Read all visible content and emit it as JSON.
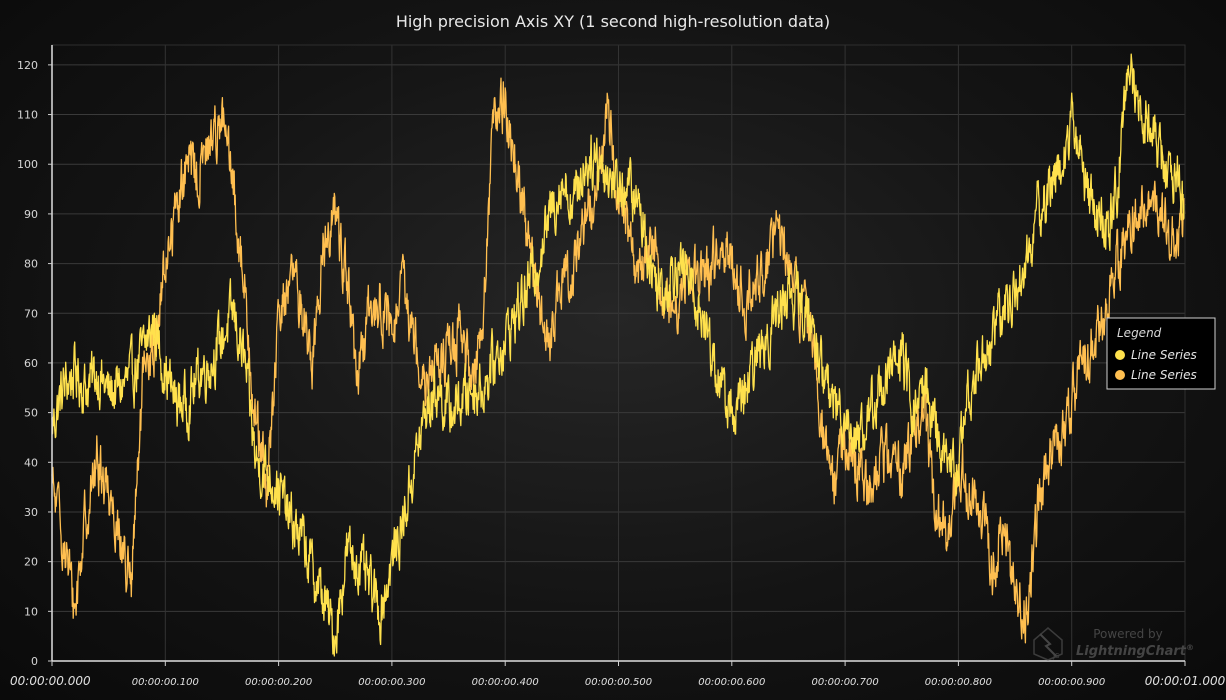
{
  "chart_data": {
    "type": "line",
    "title": "High precision Axis XY (1 second high-resolution data)",
    "xlabel": "",
    "ylabel": "",
    "xlim": [
      "00:00:00.000",
      "00:00:01.000"
    ],
    "xlim_seconds": [
      0,
      1.0
    ],
    "ylim": [
      0,
      124
    ],
    "grid": true,
    "y_ticks": [
      "0",
      "10",
      "20",
      "30",
      "40",
      "50",
      "60",
      "70",
      "80",
      "90",
      "100",
      "110",
      "120"
    ],
    "y_tick_values": [
      0,
      10,
      20,
      30,
      40,
      50,
      60,
      70,
      80,
      90,
      100,
      110,
      120
    ],
    "x_ticks": [
      "00:00:00.000",
      "00:00:00.100",
      "00:00:00.200",
      "00:00:00.300",
      "00:00:00.400",
      "00:00:00.500",
      "00:00:00.600",
      "00:00:00.700",
      "00:00:00.800",
      "00:00:00.900",
      "00:00:01.000"
    ],
    "x_tick_values": [
      0,
      0.1,
      0.2,
      0.3,
      0.4,
      0.5,
      0.6,
      0.7,
      0.8,
      0.9,
      1.0
    ],
    "legend": {
      "title": "Legend",
      "placement": "right"
    },
    "series": [
      {
        "name": "Line Series",
        "color": "#ffe14d",
        "x": [
          0,
          0.01,
          0.02,
          0.03,
          0.04,
          0.05,
          0.06,
          0.07,
          0.08,
          0.09,
          0.1,
          0.11,
          0.12,
          0.13,
          0.14,
          0.15,
          0.16,
          0.17,
          0.18,
          0.19,
          0.2,
          0.21,
          0.22,
          0.23,
          0.24,
          0.25,
          0.26,
          0.27,
          0.28,
          0.29,
          0.3,
          0.31,
          0.32,
          0.33,
          0.34,
          0.35,
          0.36,
          0.37,
          0.38,
          0.39,
          0.4,
          0.41,
          0.42,
          0.43,
          0.44,
          0.45,
          0.46,
          0.47,
          0.48,
          0.49,
          0.5,
          0.51,
          0.52,
          0.53,
          0.54,
          0.55,
          0.56,
          0.57,
          0.58,
          0.59,
          0.6,
          0.61,
          0.62,
          0.63,
          0.64,
          0.65,
          0.66,
          0.67,
          0.68,
          0.69,
          0.7,
          0.71,
          0.72,
          0.73,
          0.74,
          0.75,
          0.76,
          0.77,
          0.78,
          0.79,
          0.8,
          0.81,
          0.82,
          0.83,
          0.84,
          0.85,
          0.86,
          0.87,
          0.88,
          0.89,
          0.9,
          0.91,
          0.92,
          0.93,
          0.94,
          0.95,
          0.96,
          0.97,
          0.98,
          0.99,
          1.0
        ],
        "y": [
          47,
          55,
          58,
          55,
          58,
          54,
          55,
          57,
          62,
          68,
          58,
          52,
          52,
          58,
          60,
          65,
          70,
          60,
          40,
          38,
          35,
          28,
          25,
          18,
          12,
          5,
          22,
          20,
          15,
          10,
          20,
          28,
          40,
          50,
          55,
          50,
          52,
          55,
          55,
          60,
          65,
          70,
          75,
          82,
          90,
          97,
          92,
          100,
          102,
          98,
          96,
          95,
          90,
          78,
          75,
          80,
          78,
          72,
          65,
          55,
          50,
          52,
          60,
          65,
          70,
          75,
          72,
          68,
          58,
          52,
          50,
          45,
          48,
          55,
          58,
          62,
          50,
          55,
          48,
          38,
          40,
          55,
          60,
          66,
          70,
          75,
          80,
          90,
          95,
          100,
          108,
          100,
          90,
          85,
          95,
          120,
          112,
          108,
          100,
          98,
          92
        ]
      },
      {
        "name": "Line Series",
        "color": "#ffbf50",
        "x": [
          0,
          0.01,
          0.02,
          0.03,
          0.04,
          0.05,
          0.06,
          0.07,
          0.08,
          0.09,
          0.1,
          0.11,
          0.12,
          0.13,
          0.14,
          0.15,
          0.16,
          0.17,
          0.18,
          0.19,
          0.2,
          0.21,
          0.22,
          0.23,
          0.24,
          0.25,
          0.26,
          0.27,
          0.28,
          0.29,
          0.3,
          0.31,
          0.32,
          0.33,
          0.34,
          0.35,
          0.36,
          0.37,
          0.38,
          0.39,
          0.4,
          0.41,
          0.42,
          0.43,
          0.44,
          0.45,
          0.46,
          0.47,
          0.48,
          0.49,
          0.5,
          0.51,
          0.52,
          0.53,
          0.54,
          0.55,
          0.56,
          0.57,
          0.58,
          0.59,
          0.6,
          0.61,
          0.62,
          0.63,
          0.64,
          0.65,
          0.66,
          0.67,
          0.68,
          0.69,
          0.7,
          0.71,
          0.72,
          0.73,
          0.74,
          0.75,
          0.76,
          0.77,
          0.78,
          0.79,
          0.8,
          0.81,
          0.82,
          0.83,
          0.84,
          0.85,
          0.86,
          0.87,
          0.88,
          0.89,
          0.9,
          0.91,
          0.92,
          0.93,
          0.94,
          0.95,
          0.96,
          0.97,
          0.98,
          0.99,
          1.0
        ],
        "y": [
          35,
          25,
          10,
          30,
          40,
          35,
          25,
          15,
          55,
          62,
          80,
          92,
          100,
          98,
          105,
          110,
          95,
          75,
          48,
          35,
          68,
          78,
          72,
          60,
          85,
          90,
          78,
          55,
          70,
          72,
          65,
          75,
          65,
          58,
          60,
          62,
          65,
          58,
          68,
          110,
          112,
          100,
          85,
          70,
          65,
          75,
          80,
          88,
          95,
          110,
          95,
          85,
          78,
          85,
          72,
          70,
          80,
          75,
          78,
          85,
          82,
          72,
          75,
          80,
          85,
          82,
          72,
          68,
          48,
          35,
          45,
          40,
          35,
          40,
          42,
          38,
          45,
          50,
          30,
          25,
          40,
          35,
          30,
          20,
          25,
          15,
          10,
          30,
          40,
          45,
          52,
          60,
          65,
          70,
          80,
          88,
          90,
          95,
          88,
          85,
          90
        ]
      }
    ]
  },
  "watermark": {
    "line1": "Powered by",
    "line2": "LightningChart",
    "mark": "®",
    "logo_tag": "JS"
  }
}
